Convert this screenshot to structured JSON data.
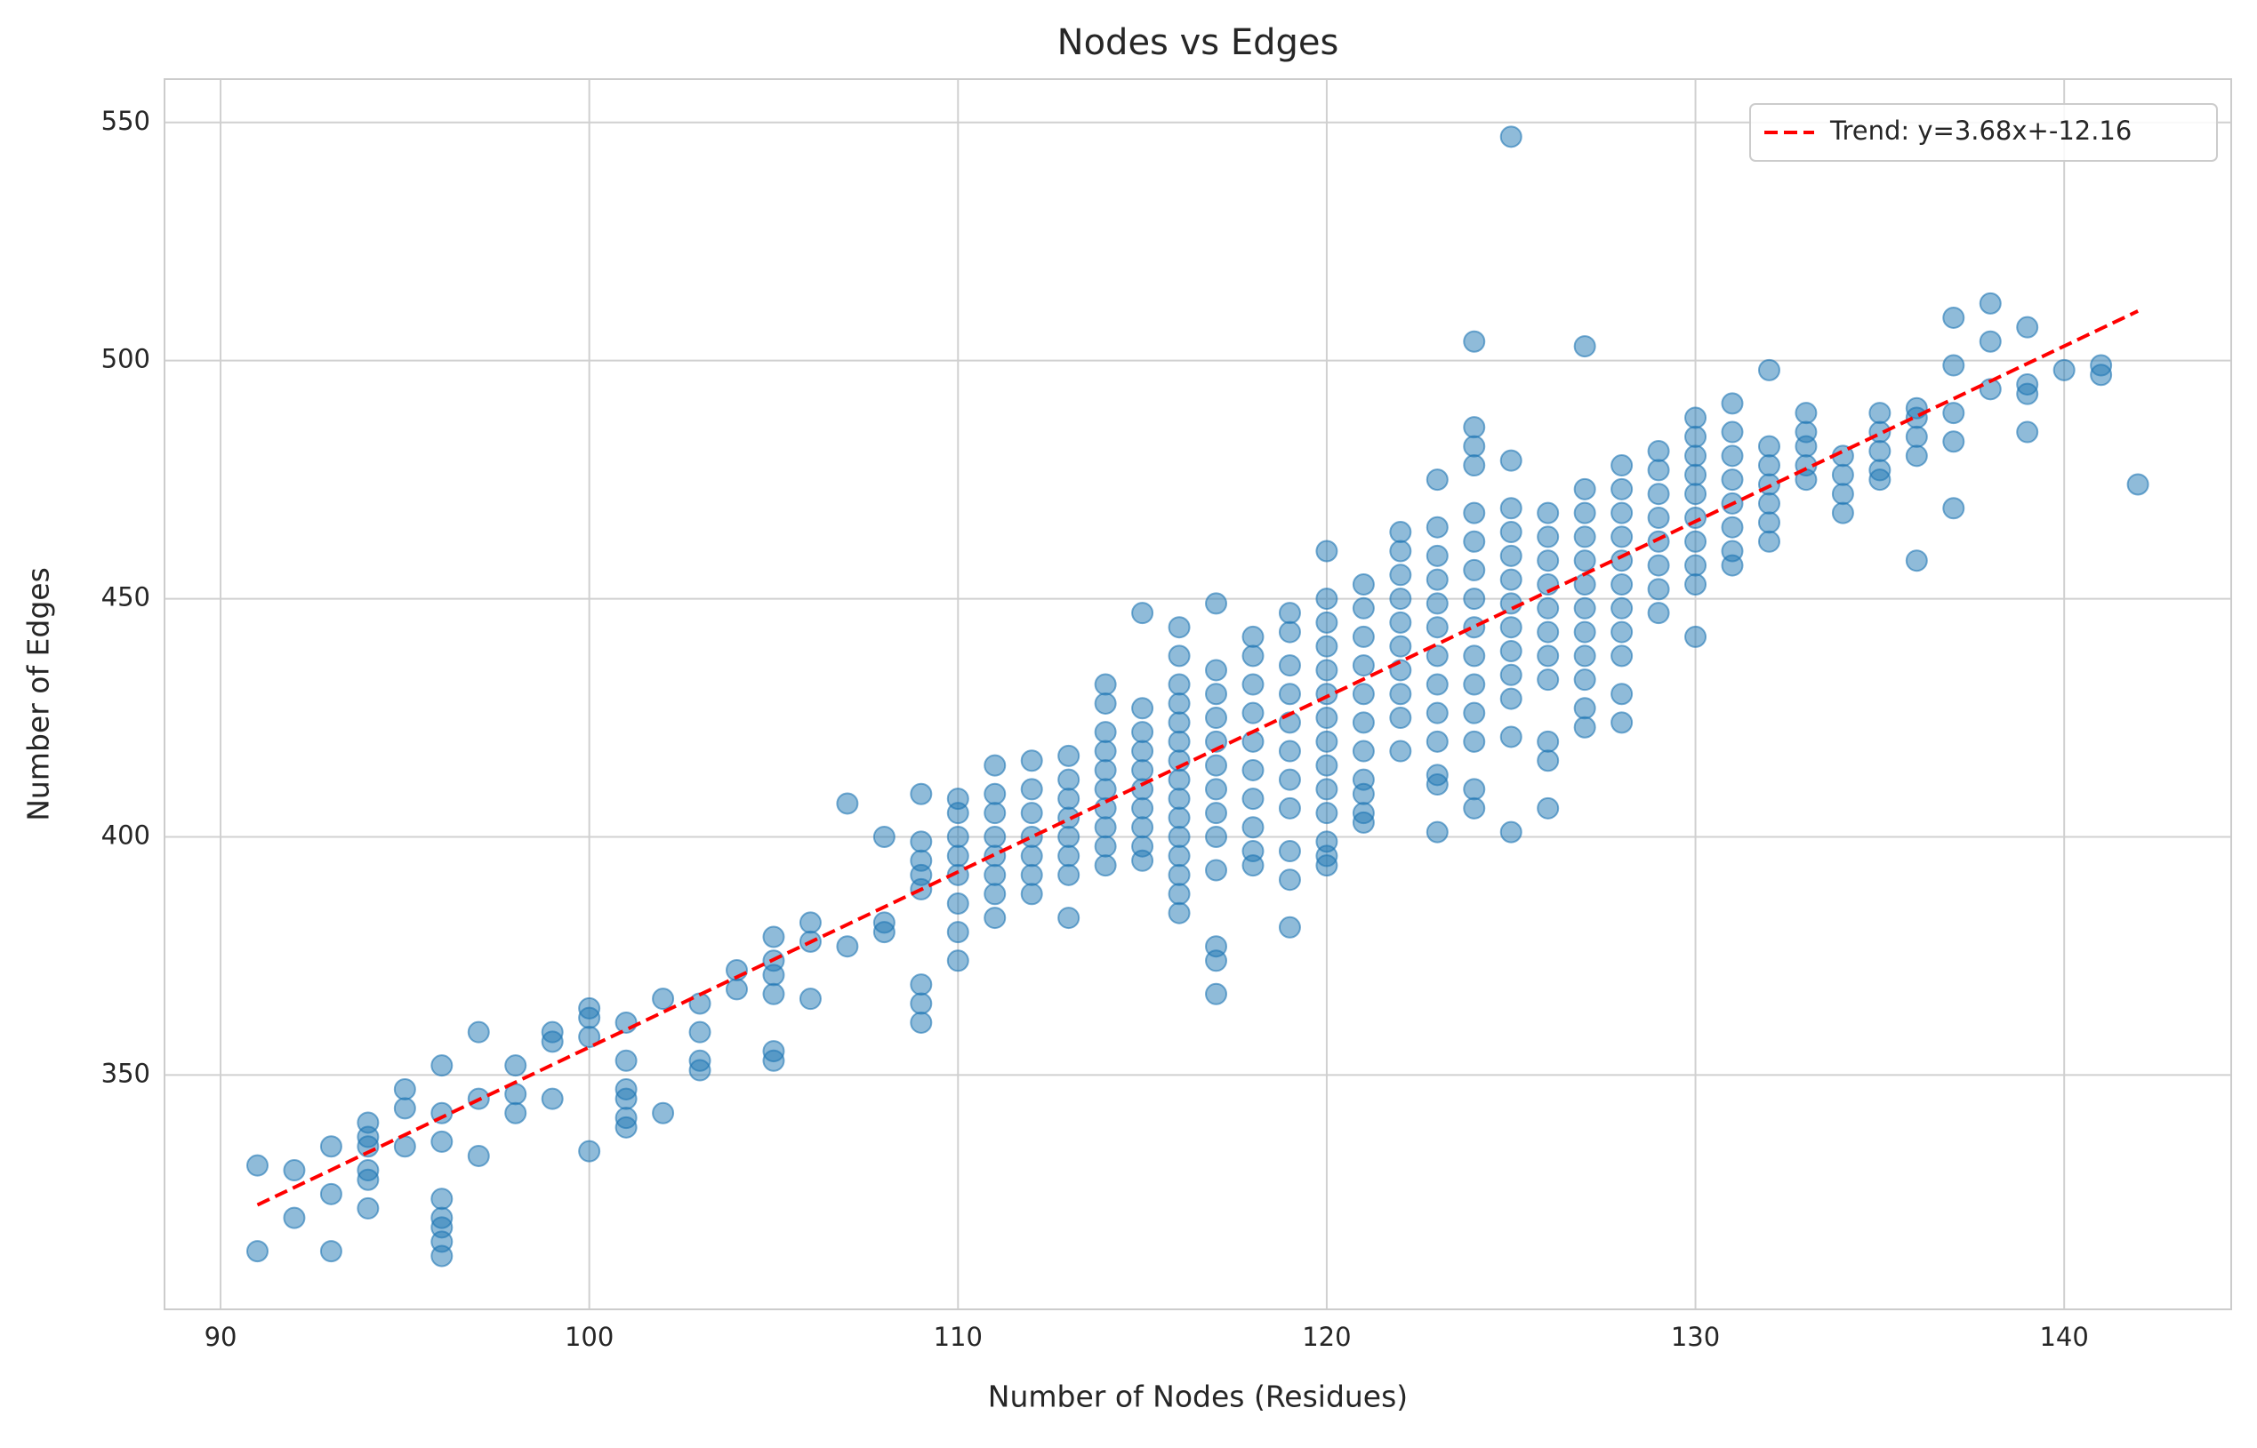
{
  "chart_data": {
    "type": "scatter",
    "title": "Nodes vs Edges",
    "xlabel": "Number of Nodes (Residues)",
    "ylabel": "Number of Edges",
    "xlim": [
      88.48,
      144.53
    ],
    "ylim": [
      300.8,
      559.1
    ],
    "xticks": [
      90,
      100,
      110,
      120,
      130,
      140
    ],
    "yticks": [
      350,
      400,
      450,
      500,
      550
    ],
    "grid": true,
    "legend": "upper right",
    "series": [
      {
        "type": "scatter",
        "color": "#1f77b4",
        "x": [
          91,
          91,
          92,
          92,
          93,
          93,
          93,
          94,
          94,
          94,
          94,
          94,
          94,
          95,
          95,
          95,
          96,
          96,
          96,
          96,
          96,
          96,
          96,
          96,
          97,
          97,
          97,
          98,
          98,
          98,
          99,
          99,
          99,
          100,
          100,
          100,
          100,
          101,
          101,
          101,
          101,
          101,
          101,
          102,
          102,
          103,
          103,
          103,
          103,
          104,
          104,
          105,
          105,
          105,
          105,
          105,
          105,
          106,
          106,
          106,
          107,
          107,
          108,
          108,
          108,
          109,
          109,
          109,
          109,
          109,
          109,
          109,
          109,
          110,
          110,
          110,
          110,
          110,
          110,
          110,
          110,
          111,
          111,
          111,
          111,
          111,
          111,
          111,
          111,
          112,
          112,
          112,
          112,
          112,
          112,
          112,
          113,
          113,
          113,
          113,
          113,
          113,
          113,
          113,
          114,
          114,
          114,
          114,
          114,
          114,
          114,
          114,
          114,
          114,
          115,
          115,
          115,
          115,
          115,
          115,
          115,
          115,
          115,
          115,
          116,
          116,
          116,
          116,
          116,
          116,
          116,
          116,
          116,
          116,
          116,
          116,
          116,
          116,
          116,
          117,
          117,
          117,
          117,
          117,
          117,
          117,
          117,
          117,
          117,
          117,
          117,
          117,
          118,
          118,
          118,
          118,
          118,
          118,
          118,
          118,
          118,
          118,
          119,
          119,
          119,
          119,
          119,
          119,
          119,
          119,
          119,
          119,
          119,
          120,
          120,
          120,
          120,
          120,
          120,
          120,
          120,
          120,
          120,
          120,
          120,
          120,
          120,
          121,
          121,
          121,
          121,
          121,
          121,
          121,
          121,
          121,
          121,
          121,
          122,
          122,
          122,
          122,
          122,
          122,
          122,
          122,
          122,
          122,
          123,
          123,
          123,
          123,
          123,
          123,
          123,
          123,
          123,
          123,
          123,
          123,
          123,
          124,
          124,
          124,
          124,
          124,
          124,
          124,
          124,
          124,
          124,
          124,
          124,
          124,
          124,
          124,
          125,
          125,
          125,
          125,
          125,
          125,
          125,
          125,
          125,
          125,
          125,
          125,
          125,
          126,
          126,
          126,
          126,
          126,
          126,
          126,
          126,
          126,
          126,
          126,
          127,
          127,
          127,
          127,
          127,
          127,
          127,
          127,
          127,
          127,
          127,
          127,
          128,
          128,
          128,
          128,
          128,
          128,
          128,
          128,
          128,
          128,
          128,
          129,
          129,
          129,
          129,
          129,
          129,
          129,
          129,
          130,
          130,
          130,
          130,
          130,
          130,
          130,
          130,
          130,
          130,
          131,
          131,
          131,
          131,
          131,
          131,
          131,
          131,
          132,
          132,
          132,
          132,
          132,
          132,
          132,
          133,
          133,
          133,
          133,
          133,
          134,
          134,
          134,
          134,
          135,
          135,
          135,
          135,
          135,
          136,
          136,
          136,
          136,
          136,
          137,
          137,
          137,
          137,
          137,
          138,
          138,
          138,
          139,
          139,
          139,
          139,
          140,
          141,
          141,
          142
        ],
        "values": [
          331,
          313,
          330,
          320,
          335,
          325,
          313,
          340,
          337,
          335,
          330,
          328,
          322,
          347,
          343,
          335,
          352,
          342,
          336,
          324,
          320,
          318,
          315,
          312,
          359,
          345,
          333,
          352,
          346,
          342,
          359,
          357,
          345,
          364,
          362,
          358,
          334,
          361,
          353,
          347,
          345,
          341,
          339,
          366,
          342,
          365,
          359,
          353,
          351,
          372,
          368,
          379,
          374,
          371,
          367,
          355,
          353,
          382,
          378,
          366,
          407,
          377,
          400,
          382,
          380,
          409,
          399,
          395,
          392,
          389,
          369,
          365,
          361,
          408,
          405,
          400,
          396,
          392,
          386,
          380,
          374,
          415,
          409,
          405,
          400,
          396,
          392,
          388,
          383,
          416,
          410,
          405,
          400,
          396,
          392,
          388,
          417,
          412,
          408,
          404,
          400,
          396,
          392,
          383,
          432,
          428,
          422,
          418,
          414,
          410,
          406,
          402,
          398,
          394,
          447,
          427,
          422,
          418,
          414,
          410,
          406,
          402,
          398,
          395,
          444,
          438,
          432,
          428,
          424,
          420,
          416,
          412,
          408,
          404,
          400,
          396,
          392,
          388,
          384,
          449,
          435,
          430,
          425,
          420,
          415,
          410,
          405,
          400,
          393,
          377,
          374,
          367,
          442,
          438,
          432,
          426,
          420,
          414,
          408,
          402,
          397,
          394,
          447,
          443,
          436,
          430,
          424,
          418,
          412,
          406,
          397,
          391,
          381,
          460,
          450,
          445,
          440,
          435,
          430,
          425,
          420,
          415,
          410,
          405,
          399,
          396,
          394,
          453,
          448,
          442,
          436,
          430,
          424,
          418,
          412,
          409,
          405,
          403,
          464,
          460,
          455,
          450,
          445,
          440,
          435,
          430,
          425,
          418,
          475,
          465,
          459,
          454,
          449,
          444,
          438,
          432,
          426,
          420,
          413,
          411,
          401,
          504,
          486,
          482,
          478,
          468,
          462,
          456,
          450,
          444,
          438,
          432,
          426,
          420,
          410,
          406,
          547,
          479,
          469,
          464,
          459,
          454,
          449,
          444,
          439,
          434,
          429,
          421,
          401,
          468,
          463,
          458,
          453,
          448,
          443,
          438,
          433,
          420,
          416,
          406,
          503,
          473,
          468,
          463,
          458,
          453,
          448,
          443,
          438,
          433,
          427,
          423,
          478,
          473,
          468,
          463,
          458,
          453,
          448,
          443,
          438,
          430,
          424,
          481,
          477,
          472,
          467,
          462,
          457,
          452,
          447,
          488,
          484,
          480,
          476,
          472,
          467,
          462,
          457,
          453,
          442,
          491,
          485,
          480,
          475,
          470,
          465,
          460,
          457,
          498,
          482,
          478,
          474,
          470,
          466,
          462,
          489,
          485,
          482,
          478,
          475,
          480,
          476,
          472,
          468,
          489,
          485,
          481,
          477,
          475,
          490,
          488,
          484,
          480,
          458,
          509,
          499,
          489,
          483,
          469,
          512,
          504,
          494,
          507,
          495,
          493,
          485,
          498,
          499,
          497,
          474
        ]
      },
      {
        "type": "line",
        "name": "Trend: y=3.68x+-12.16",
        "color": "#ff0000",
        "dashed": true,
        "x": [
          91,
          142
        ],
        "values": [
          322.72,
          510.4
        ]
      }
    ]
  }
}
